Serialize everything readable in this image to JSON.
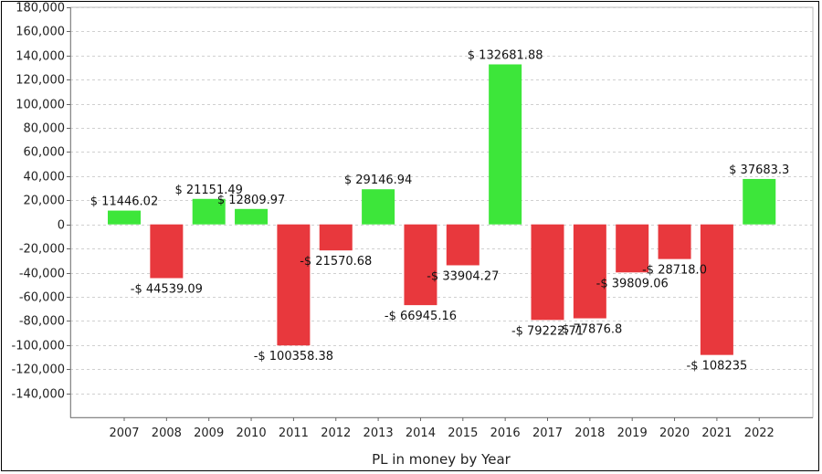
{
  "chart_data": {
    "type": "bar",
    "xlabel": "PL in money by Year",
    "ylabel": "",
    "ylim": [
      -160000,
      180000
    ],
    "yticks": [
      180000,
      160000,
      140000,
      120000,
      100000,
      80000,
      60000,
      40000,
      20000,
      0,
      -20000,
      -40000,
      -60000,
      -80000,
      -100000,
      -120000,
      -140000
    ],
    "ytick_labels": [
      "180,000",
      "160,000",
      "140,000",
      "120,000",
      "100,000",
      "80,000",
      "60,000",
      "40,000",
      "20,000",
      "0",
      "-20,000",
      "-40,000",
      "-60,000",
      "-80,000",
      "-100,000",
      "-120,000",
      "-140,000"
    ],
    "grid": true,
    "categories": [
      "2007",
      "2008",
      "2009",
      "2010",
      "2011",
      "2012",
      "2013",
      "2014",
      "2015",
      "2016",
      "2017",
      "2018",
      "2019",
      "2020",
      "2021",
      "2022"
    ],
    "values": [
      11446.02,
      -44539.09,
      21151.49,
      12809.97,
      -100358.38,
      -21570.68,
      29146.94,
      -66945.16,
      -33904.27,
      132681.88,
      -79222.71,
      -77876.8,
      -39809.06,
      -28718.0,
      -108235,
      37683.3
    ],
    "data_labels": [
      "$ 11446.02",
      "-$ 44539.09",
      "$ 21151.49",
      "$ 12809.97",
      "-$ 100358.38",
      "-$ 21570.68",
      "$ 29146.94",
      "-$ 66945.16",
      "-$ 33904.27",
      "$ 132681.88",
      "-$ 79222.71",
      "-$ 77876.8",
      "-$ 39809.06",
      "-$ 28718.0",
      "-$ 108235",
      "$ 37683.3"
    ],
    "colors": {
      "positive": "#3de63a",
      "negative": "#e8383d"
    }
  }
}
